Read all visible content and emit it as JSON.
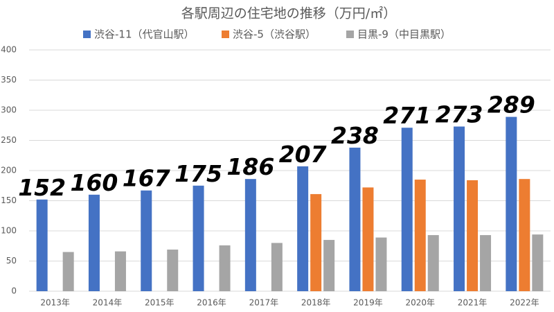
{
  "chart_data": {
    "type": "bar",
    "title": "各駅周辺の住宅地の推移（万円/㎡）",
    "categories": [
      "2013年",
      "2014年",
      "2015年",
      "2016年",
      "2017年",
      "2018年",
      "2019年",
      "2020年",
      "2021年",
      "2022年"
    ],
    "series": [
      {
        "name": "渋谷-11（代官山駅）",
        "color": "#4472c4",
        "values": [
          152,
          160,
          167,
          175,
          186,
          207,
          238,
          271,
          273,
          289
        ],
        "data_labels": true
      },
      {
        "name": "渋谷-5（渋谷駅）",
        "color": "#ed7d31",
        "values": [
          null,
          null,
          null,
          null,
          null,
          161,
          172,
          185,
          184,
          186
        ],
        "data_labels": false
      },
      {
        "name": "目黒-9（中目黒駅）",
        "color": "#a5a5a5",
        "values": [
          65,
          66,
          69,
          76,
          80,
          85,
          89,
          93,
          93,
          94
        ],
        "data_labels": false
      }
    ],
    "ylim": [
      0,
      400
    ],
    "yticks": [
      0,
      50,
      100,
      150,
      200,
      250,
      300,
      350,
      400
    ],
    "grid": true,
    "legend": "top"
  }
}
